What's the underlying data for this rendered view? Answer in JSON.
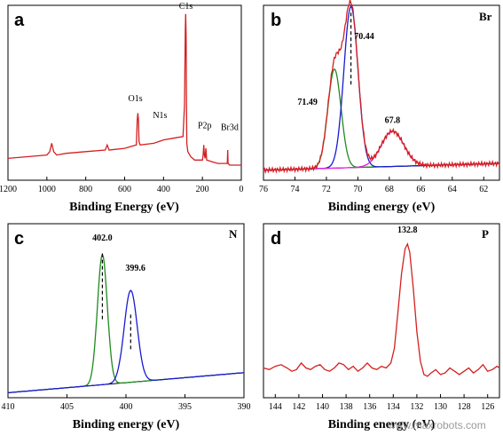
{
  "watermark": "www.maxrobots.com",
  "colors": {
    "red": "#d42020",
    "green": "#1f8a1f",
    "blue": "#1a1ad0",
    "magenta": "#e020e0",
    "black": "#000000"
  },
  "chart_data": [
    {
      "panel": "a",
      "type": "line",
      "title": "",
      "xlabel": "Binding Energy (eV)",
      "ylabel": "",
      "xlim": [
        1200,
        0
      ],
      "ylim": [
        0,
        1
      ],
      "xticks": [
        1200,
        1000,
        800,
        600,
        400,
        200,
        0
      ],
      "series": [
        {
          "color": "red",
          "x": [
            1200,
            1100,
            1000,
            985,
            975,
            965,
            950,
            900,
            800,
            700,
            690,
            680,
            600,
            540,
            535,
            532,
            529,
            526,
            520,
            450,
            400,
            350,
            300,
            292,
            288,
            286,
            284,
            282,
            280,
            275,
            260,
            240,
            220,
            200,
            196,
            193,
            190,
            186,
            182,
            178,
            150,
            120,
            100,
            80,
            72,
            70,
            68,
            60,
            30,
            0
          ],
          "y": [
            0.13,
            0.14,
            0.15,
            0.17,
            0.22,
            0.17,
            0.15,
            0.16,
            0.17,
            0.18,
            0.21,
            0.18,
            0.19,
            0.21,
            0.36,
            0.4,
            0.36,
            0.23,
            0.21,
            0.22,
            0.24,
            0.25,
            0.26,
            0.45,
            0.9,
            0.99,
            0.86,
            0.45,
            0.22,
            0.17,
            0.14,
            0.12,
            0.12,
            0.12,
            0.15,
            0.21,
            0.15,
            0.13,
            0.19,
            0.12,
            0.11,
            0.1,
            0.1,
            0.1,
            0.1,
            0.18,
            0.1,
            0.09,
            0.09,
            0.09
          ]
        }
      ],
      "annotations": [
        {
          "text": "C1s",
          "x": 285,
          "y": 1.02
        },
        {
          "text": "O1s",
          "x": 545,
          "y": 0.47
        },
        {
          "text": "N1s",
          "x": 418,
          "y": 0.37
        },
        {
          "text": "P2p",
          "x": 188,
          "y": 0.31
        },
        {
          "text": "Br3d",
          "x": 60,
          "y": 0.3
        }
      ]
    },
    {
      "panel": "b",
      "tag": "Br",
      "type": "line",
      "title": "",
      "xlabel": "Binding energy (eV)",
      "ylabel": "",
      "xlim": [
        76,
        61
      ],
      "ylim": [
        0,
        1
      ],
      "xticks": [
        76,
        74,
        72,
        70,
        68,
        66,
        64,
        62
      ],
      "peaks": [
        {
          "color": "green",
          "center": 71.49,
          "height": 0.59,
          "width": 0.42
        },
        {
          "color": "blue",
          "center": 70.44,
          "height": 0.96,
          "width": 0.45
        },
        {
          "color": "magenta",
          "center": 67.8,
          "height": 0.21,
          "width": 0.72
        }
      ],
      "baseline": {
        "x": [
          76,
          61
        ],
        "y": [
          0.06,
          0.1
        ]
      },
      "annotations": [
        {
          "text": "70.44",
          "x": 69.6,
          "y": 0.84
        },
        {
          "text": "71.49",
          "x": 73.2,
          "y": 0.45
        },
        {
          "text": "67.8",
          "x": 67.8,
          "y": 0.34
        }
      ],
      "marker": {
        "x": 70.44,
        "y0": 0.57,
        "y1": 1.0
      }
    },
    {
      "panel": "c",
      "tag": "N",
      "type": "line",
      "title": "",
      "xlabel": "Binding energy (eV)",
      "ylabel": "",
      "xlim": [
        410,
        390
      ],
      "ylim": [
        0,
        1
      ],
      "xticks": [
        410,
        405,
        400,
        395,
        390
      ],
      "peaks": [
        {
          "color": "green",
          "center": 402.0,
          "height": 0.78,
          "width": 0.42
        },
        {
          "color": "blue",
          "center": 399.6,
          "height": 0.55,
          "width": 0.55
        }
      ],
      "baseline": {
        "x": [
          410,
          390
        ],
        "y": [
          0.03,
          0.15
        ]
      },
      "annotations": [
        {
          "text": "402.0",
          "x": 402.0,
          "y": 0.94
        },
        {
          "text": "399.6",
          "x": 399.2,
          "y": 0.76
        }
      ],
      "markers": [
        {
          "x": 402.0,
          "y0": 0.47,
          "y1": 0.87
        },
        {
          "x": 399.6,
          "y0": 0.29,
          "y1": 0.51
        }
      ]
    },
    {
      "panel": "d",
      "tag": "P",
      "type": "line",
      "title": "",
      "xlabel": "Binding energy (eV)",
      "ylabel": "",
      "xlim": [
        145,
        125
      ],
      "ylim": [
        0,
        1
      ],
      "xticks": [
        144,
        142,
        140,
        138,
        136,
        134,
        132,
        130,
        128,
        126
      ],
      "series": [
        {
          "color": "red",
          "x": [
            145,
            144.5,
            144,
            143.5,
            143,
            142.6,
            142.2,
            141.8,
            141.4,
            141,
            140.6,
            140.2,
            139.8,
            139.4,
            139,
            138.6,
            138.2,
            137.8,
            137.4,
            137,
            136.6,
            136.2,
            135.8,
            135.4,
            135,
            134.6,
            134.2,
            133.9,
            133.6,
            133.3,
            133.0,
            132.8,
            132.6,
            132.3,
            132.0,
            131.7,
            131.4,
            131.1,
            130.8,
            130.4,
            130,
            129.6,
            129.2,
            128.8,
            128.4,
            128,
            127.6,
            127.2,
            126.8,
            126.4,
            126,
            125.6,
            125.2,
            125
          ],
          "y": [
            0.18,
            0.17,
            0.19,
            0.2,
            0.18,
            0.16,
            0.17,
            0.21,
            0.18,
            0.17,
            0.19,
            0.2,
            0.17,
            0.16,
            0.18,
            0.21,
            0.2,
            0.17,
            0.19,
            0.16,
            0.18,
            0.21,
            0.18,
            0.17,
            0.19,
            0.18,
            0.21,
            0.3,
            0.52,
            0.75,
            0.9,
            0.93,
            0.88,
            0.66,
            0.4,
            0.22,
            0.14,
            0.13,
            0.15,
            0.17,
            0.14,
            0.15,
            0.18,
            0.16,
            0.14,
            0.16,
            0.18,
            0.15,
            0.17,
            0.2,
            0.16,
            0.17,
            0.19,
            0.18
          ]
        }
      ],
      "annotations": [
        {
          "text": "132.8",
          "x": 132.8,
          "y": 1.0
        }
      ]
    }
  ]
}
